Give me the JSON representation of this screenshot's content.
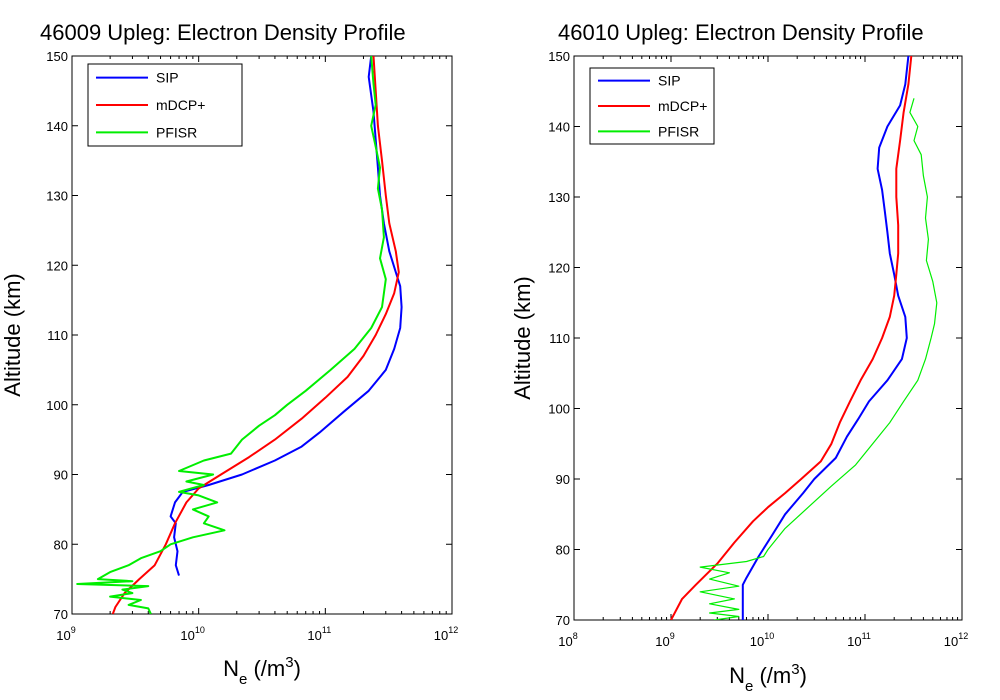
{
  "chart_data": [
    {
      "type": "line",
      "title": "46009 Upleg: Electron Density Profile",
      "xlabel": "N_e (/m^3)",
      "xlabel_base": "N",
      "xlabel_sub": "e",
      "xlabel_rest": "(/m",
      "xlabel_sup": "3",
      "xlabel_close": ")",
      "ylabel": "Altitude (km)",
      "x_scale": "log",
      "xlim": [
        1000000000.0,
        1000000000000.0
      ],
      "ylim": [
        70,
        150
      ],
      "x_ticks": [
        {
          "value": 1000000000.0,
          "base": "10",
          "exp": "9"
        },
        {
          "value": 10000000000.0,
          "base": "10",
          "exp": "10"
        },
        {
          "value": 100000000000.0,
          "base": "10",
          "exp": "11"
        },
        {
          "value": 1000000000000.0,
          "base": "10",
          "exp": "12"
        }
      ],
      "y_ticks": [
        70,
        80,
        90,
        100,
        110,
        120,
        130,
        140,
        150
      ],
      "legend_position": "top-left",
      "series": [
        {
          "name": "SIP",
          "color": "#0000ff",
          "points": [
            [
              230000000000.0,
              150
            ],
            [
              220000000000.0,
              147
            ],
            [
              240000000000.0,
              142
            ],
            [
              250000000000.0,
              138
            ],
            [
              260000000000.0,
              134
            ],
            [
              270000000000.0,
              130
            ],
            [
              290000000000.0,
              126
            ],
            [
              320000000000.0,
              122
            ],
            [
              360000000000.0,
              119
            ],
            [
              390000000000.0,
              117
            ],
            [
              400000000000.0,
              114
            ],
            [
              390000000000.0,
              111
            ],
            [
              350000000000.0,
              108
            ],
            [
              300000000000.0,
              105
            ],
            [
              220000000000.0,
              102
            ],
            [
              140000000000.0,
              99
            ],
            [
              90000000000.0,
              96
            ],
            [
              65000000000.0,
              94
            ],
            [
              40000000000.0,
              92
            ],
            [
              22000000000.0,
              90
            ],
            [
              12000000000.0,
              88.5
            ],
            [
              7500000000.0,
              87.5
            ],
            [
              6500000000.0,
              86
            ],
            [
              6000000000.0,
              84
            ],
            [
              6600000000.0,
              83
            ],
            [
              6400000000.0,
              81
            ],
            [
              6800000000.0,
              79
            ],
            [
              6600000000.0,
              77
            ],
            [
              7000000000.0,
              75.5
            ]
          ]
        },
        {
          "name": "mDCP+",
          "color": "#ff0000",
          "points": [
            [
              240000000000.0,
              150
            ],
            [
              250000000000.0,
              145
            ],
            [
              260000000000.0,
              140
            ],
            [
              280000000000.0,
              135
            ],
            [
              300000000000.0,
              130
            ],
            [
              320000000000.0,
              126
            ],
            [
              360000000000.0,
              122
            ],
            [
              380000000000.0,
              119
            ],
            [
              350000000000.0,
              116
            ],
            [
              300000000000.0,
              113
            ],
            [
              250000000000.0,
              110
            ],
            [
              200000000000.0,
              107
            ],
            [
              150000000000.0,
              104
            ],
            [
              100000000000.0,
              101
            ],
            [
              65000000000.0,
              98
            ],
            [
              40000000000.0,
              95
            ],
            [
              25000000000.0,
              92.5
            ],
            [
              15000000000.0,
              90
            ],
            [
              10000000000.0,
              88
            ],
            [
              8000000000.0,
              86
            ],
            [
              6500000000.0,
              83
            ],
            [
              5500000000.0,
              80
            ],
            [
              4500000000.0,
              77
            ],
            [
              3400000000.0,
              75
            ],
            [
              2600000000.0,
              73
            ],
            [
              2200000000.0,
              71
            ],
            [
              2100000000.0,
              70
            ]
          ]
        },
        {
          "name": "PFISR",
          "color": "#00ee00",
          "points": [
            [
              230000000000.0,
              150
            ],
            [
              240000000000.0,
              146
            ],
            [
              250000000000.0,
              143
            ],
            [
              230000000000.0,
              140
            ],
            [
              250000000000.0,
              137
            ],
            [
              270000000000.0,
              134
            ],
            [
              260000000000.0,
              131
            ],
            [
              280000000000.0,
              128
            ],
            [
              290000000000.0,
              124
            ],
            [
              270000000000.0,
              121
            ],
            [
              300000000000.0,
              118
            ],
            [
              280000000000.0,
              114
            ],
            [
              230000000000.0,
              111
            ],
            [
              170000000000.0,
              108
            ],
            [
              110000000000.0,
              105
            ],
            [
              70000000000.0,
              102
            ],
            [
              50000000000.0,
              100
            ],
            [
              40000000000.0,
              98.5
            ],
            [
              30000000000.0,
              97
            ],
            [
              22000000000.0,
              95
            ],
            [
              18000000000.0,
              93
            ],
            [
              11000000000.0,
              92
            ],
            [
              7000000000.0,
              90.5
            ],
            [
              13000000000.0,
              90
            ],
            [
              8000000000.0,
              89
            ],
            [
              11000000000.0,
              88.5
            ],
            [
              7000000000.0,
              87.5
            ],
            [
              10000000000.0,
              87
            ],
            [
              14000000000.0,
              86
            ],
            [
              9000000000.0,
              85
            ],
            [
              12000000000.0,
              84
            ],
            [
              11000000000.0,
              83
            ],
            [
              16000000000.0,
              82
            ],
            [
              9000000000.0,
              81
            ],
            [
              6000000000.0,
              80
            ],
            [
              5000000000.0,
              79
            ],
            [
              3500000000.0,
              78
            ],
            [
              2800000000.0,
              77
            ],
            [
              2000000000.0,
              76
            ],
            [
              1600000000.0,
              75
            ],
            [
              3000000000.0,
              74.7
            ],
            [
              1100000000.0,
              74.3
            ],
            [
              4000000000.0,
              74
            ],
            [
              2500000000.0,
              73.5
            ],
            [
              3000000000.0,
              73
            ],
            [
              2000000000.0,
              72.5
            ],
            [
              3500000000.0,
              72
            ],
            [
              2800000000.0,
              71.3
            ],
            [
              4000000000.0,
              70.8
            ],
            [
              4200000000.0,
              70
            ]
          ]
        }
      ]
    },
    {
      "type": "line",
      "title": "46010 Upleg: Electron Density Profile",
      "xlabel": "N_e (/m^3)",
      "xlabel_base": "N",
      "xlabel_sub": "e",
      "xlabel_rest": "(/m",
      "xlabel_sup": "3",
      "xlabel_close": ")",
      "ylabel": "Altitude (km)",
      "x_scale": "log",
      "xlim": [
        100000000.0,
        1000000000000.0
      ],
      "ylim": [
        70,
        150
      ],
      "x_ticks": [
        {
          "value": 100000000.0,
          "base": "10",
          "exp": "8"
        },
        {
          "value": 1000000000.0,
          "base": "10",
          "exp": "9"
        },
        {
          "value": 10000000000.0,
          "base": "10",
          "exp": "10"
        },
        {
          "value": 100000000000.0,
          "base": "10",
          "exp": "11"
        },
        {
          "value": 1000000000000.0,
          "base": "10",
          "exp": "12"
        }
      ],
      "y_ticks": [
        70,
        80,
        90,
        100,
        110,
        120,
        130,
        140,
        150
      ],
      "legend_position": "top-left",
      "series": [
        {
          "name": "SIP",
          "color": "#0000ff",
          "points": [
            [
              280000000000.0,
              150
            ],
            [
              260000000000.0,
              146
            ],
            [
              230000000000.0,
              143
            ],
            [
              170000000000.0,
              140
            ],
            [
              140000000000.0,
              137
            ],
            [
              135000000000.0,
              134
            ],
            [
              150000000000.0,
              131
            ],
            [
              160000000000.0,
              128
            ],
            [
              170000000000.0,
              125
            ],
            [
              180000000000.0,
              122
            ],
            [
              200000000000.0,
              119
            ],
            [
              220000000000.0,
              116
            ],
            [
              260000000000.0,
              113
            ],
            [
              270000000000.0,
              110
            ],
            [
              240000000000.0,
              107
            ],
            [
              170000000000.0,
              104
            ],
            [
              110000000000.0,
              101
            ],
            [
              85000000000.0,
              98.5
            ],
            [
              65000000000.0,
              96
            ],
            [
              50000000000.0,
              93
            ],
            [
              30000000000.0,
              90
            ],
            [
              23000000000.0,
              88
            ],
            [
              15000000000.0,
              85
            ],
            [
              11000000000.0,
              82
            ],
            [
              8000000000.0,
              79
            ],
            [
              6000000000.0,
              76
            ],
            [
              5500000000.0,
              75
            ],
            [
              5500000000.0,
              70
            ]
          ]
        },
        {
          "name": "mDCP+",
          "color": "#ff0000",
          "points": [
            [
              300000000000.0,
              150
            ],
            [
              280000000000.0,
              146
            ],
            [
              250000000000.0,
              142
            ],
            [
              230000000000.0,
              138
            ],
            [
              210000000000.0,
              134
            ],
            [
              210000000000.0,
              130
            ],
            [
              220000000000.0,
              126
            ],
            [
              220000000000.0,
              122
            ],
            [
              210000000000.0,
              119
            ],
            [
              200000000000.0,
              116
            ],
            [
              180000000000.0,
              113
            ],
            [
              150000000000.0,
              110
            ],
            [
              120000000000.0,
              107
            ],
            [
              90000000000.0,
              104
            ],
            [
              70000000000.0,
              101
            ],
            [
              55000000000.0,
              98
            ],
            [
              45000000000.0,
              95
            ],
            [
              35000000000.0,
              92.5
            ],
            [
              22000000000.0,
              90
            ],
            [
              15000000000.0,
              88
            ],
            [
              10000000000.0,
              86
            ],
            [
              7000000000.0,
              84
            ],
            [
              4500000000.0,
              81
            ],
            [
              3000000000.0,
              78
            ],
            [
              1800000000.0,
              75
            ],
            [
              1300000000.0,
              73
            ],
            [
              1000000000.0,
              70
            ]
          ]
        },
        {
          "name": "PFISR",
          "color": "#00ee00",
          "points": [
            [
              320000000000.0,
              144
            ],
            [
              290000000000.0,
              142
            ],
            [
              350000000000.0,
              140
            ],
            [
              320000000000.0,
              138
            ],
            [
              380000000000.0,
              136
            ],
            [
              400000000000.0,
              133
            ],
            [
              440000000000.0,
              130
            ],
            [
              420000000000.0,
              127
            ],
            [
              450000000000.0,
              124
            ],
            [
              430000000000.0,
              121
            ],
            [
              500000000000.0,
              118
            ],
            [
              550000000000.0,
              115
            ],
            [
              520000000000.0,
              112
            ],
            [
              480000000000.0,
              110
            ],
            [
              420000000000.0,
              107
            ],
            [
              350000000000.0,
              104
            ],
            [
              250000000000.0,
              101
            ],
            [
              180000000000.0,
              98
            ],
            [
              120000000000.0,
              95
            ],
            [
              80000000000.0,
              92
            ],
            [
              45000000000.0,
              89
            ],
            [
              26000000000.0,
              86
            ],
            [
              15000000000.0,
              83
            ],
            [
              10000000000.0,
              80
            ],
            [
              9000000000.0,
              79
            ],
            [
              6000000000.0,
              78.3
            ],
            [
              2000000000.0,
              77.5
            ],
            [
              4000000000.0,
              76.7
            ],
            [
              2500000000.0,
              75.8
            ],
            [
              5000000000.0,
              74.8
            ],
            [
              2000000000.0,
              74
            ],
            [
              4500000000.0,
              73
            ],
            [
              2500000000.0,
              72.3
            ],
            [
              5000000000.0,
              71.5
            ],
            [
              2500000000.0,
              71
            ],
            [
              5000000000.0,
              70.5
            ],
            [
              2800000000.0,
              70
            ]
          ]
        }
      ]
    }
  ]
}
